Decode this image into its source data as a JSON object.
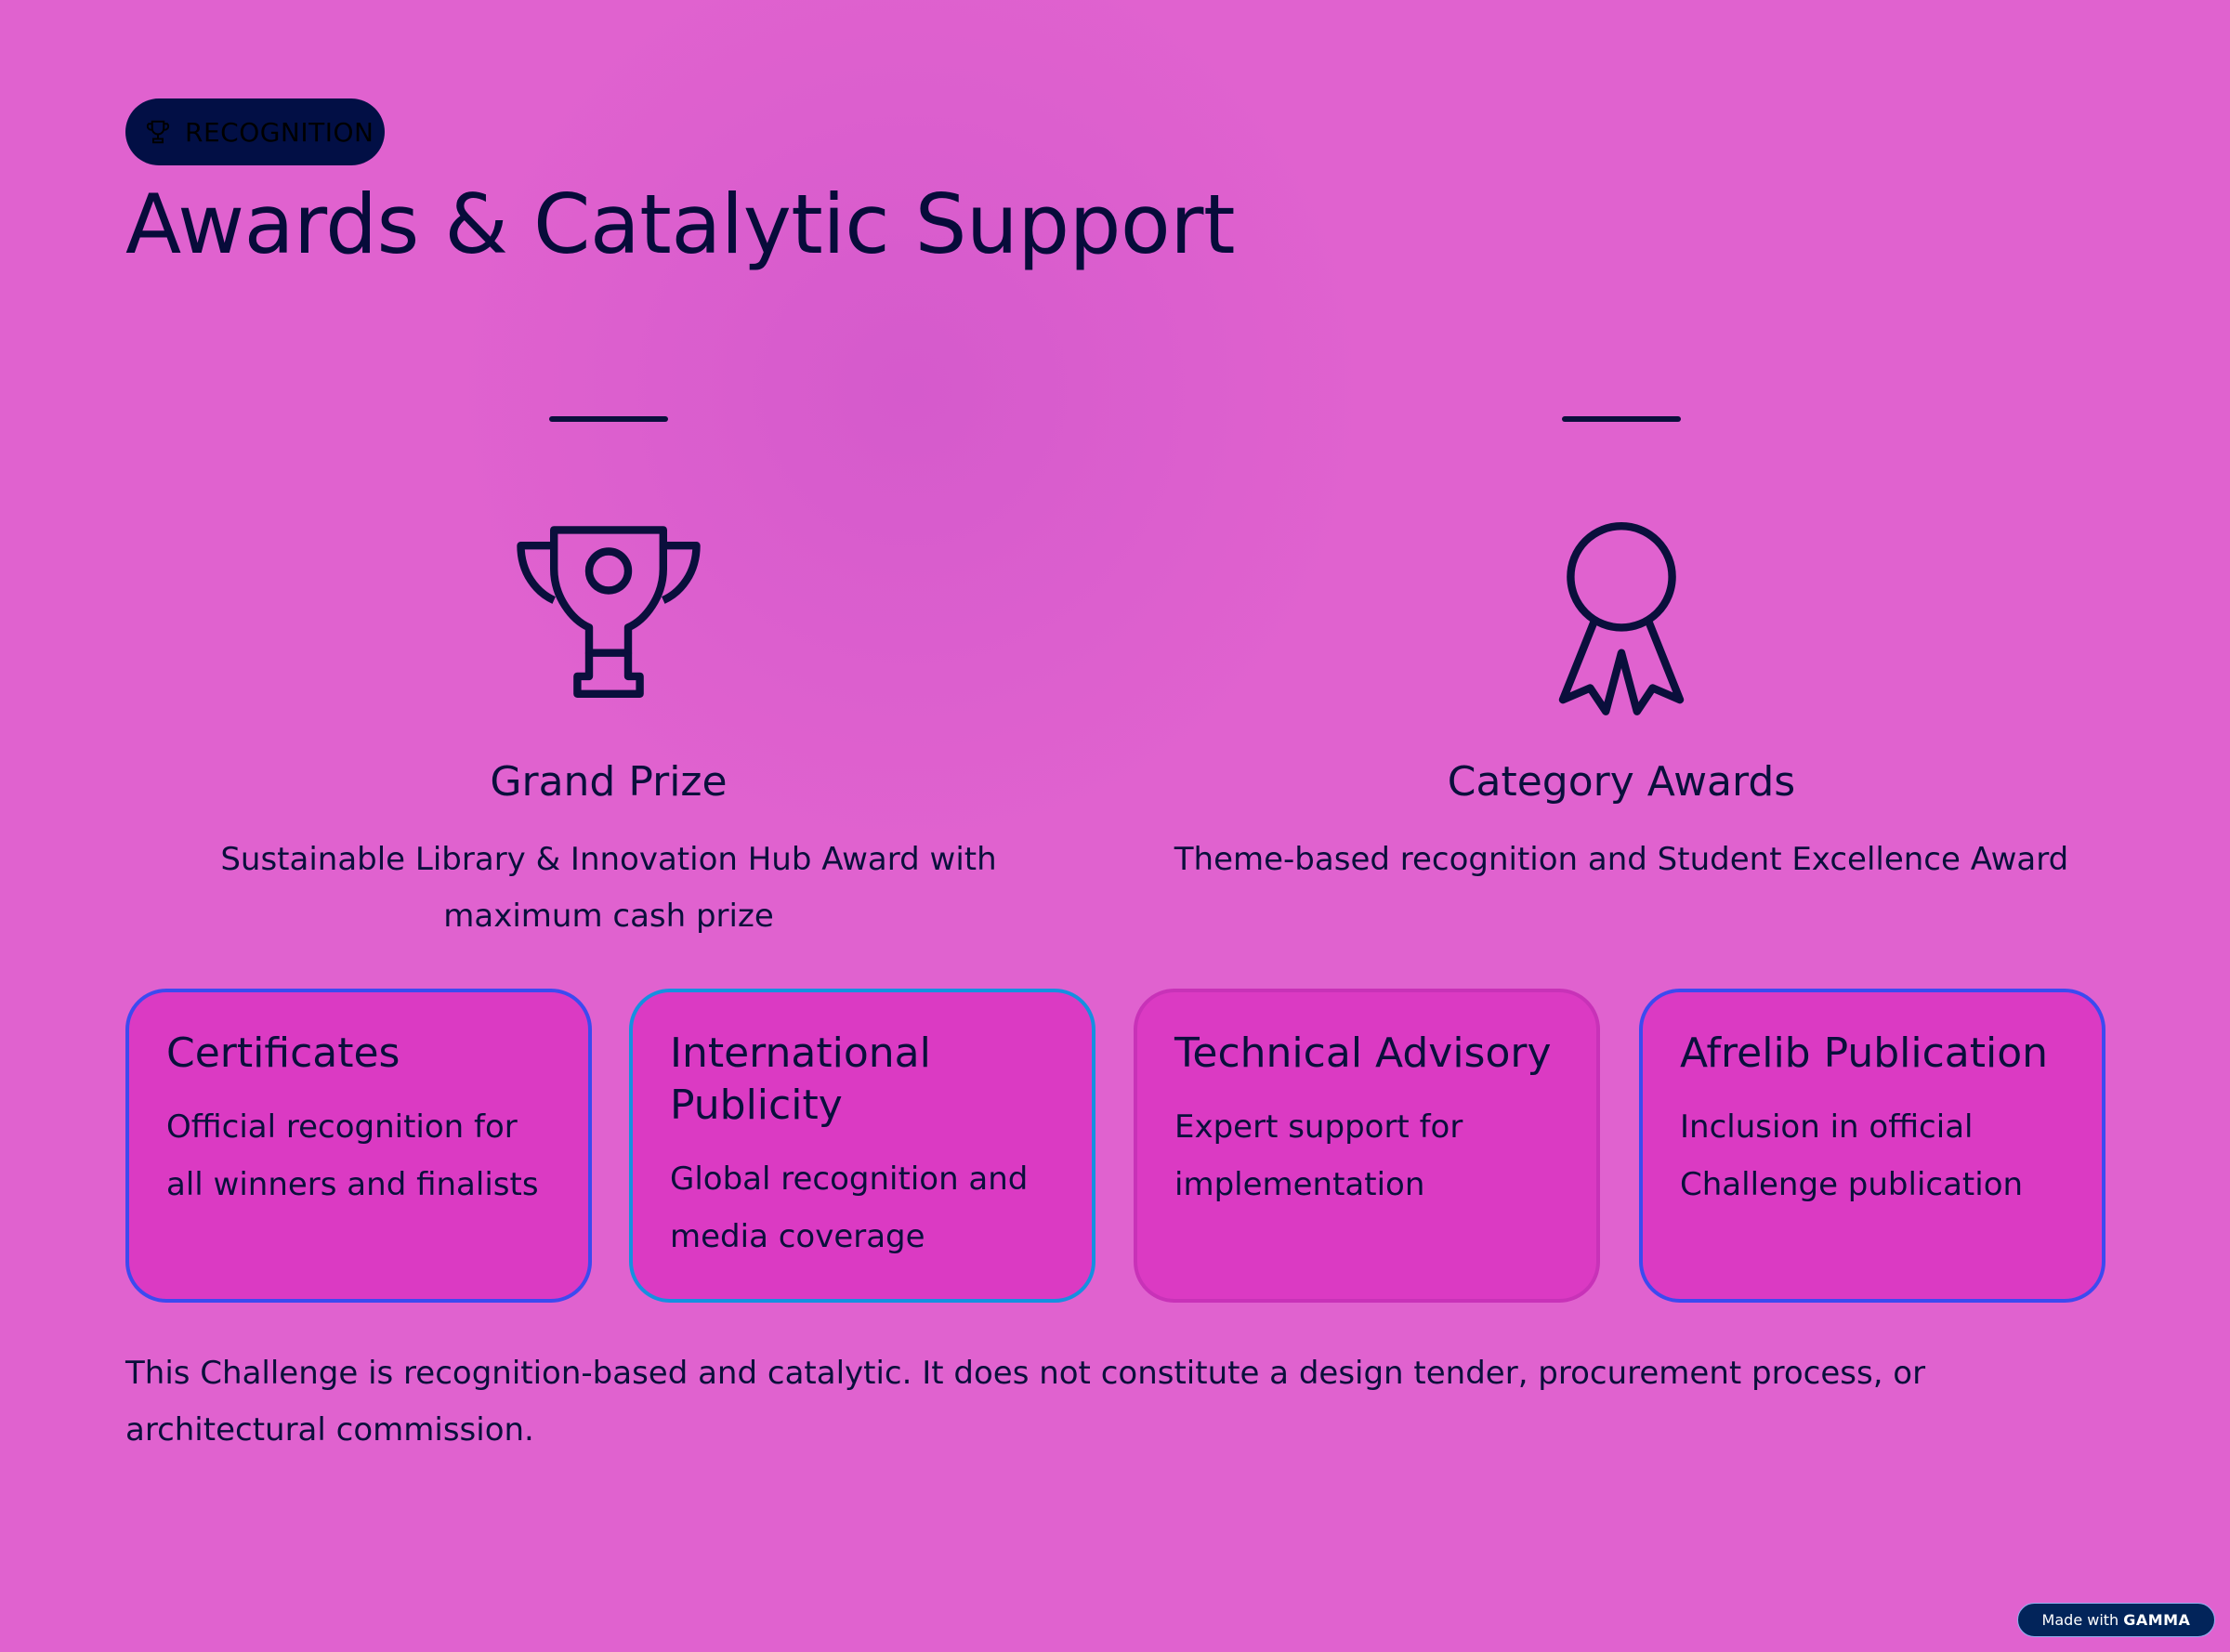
{
  "badge": {
    "label": "RECOGNITION",
    "icon": "trophy-icon"
  },
  "title": "Awards & Catalytic Support",
  "highlights": [
    {
      "icon": "trophy-icon",
      "title": "Grand Prize",
      "description": "Sustainable Library & Innovation Hub Award with maximum cash prize"
    },
    {
      "icon": "award-ribbon-icon",
      "title": "Category Awards",
      "description": "Theme-based recognition and Student Excellence Award"
    }
  ],
  "cards": [
    {
      "title": "Certificates",
      "description": "Official recognition for all winners and finalists",
      "border": "#3c4af0"
    },
    {
      "title": "International Publicity",
      "description": "Global recognition and media coverage",
      "border": "#1590e0"
    },
    {
      "title": "Technical Advisory",
      "description": "Expert support for implementation",
      "border": "#c832b8"
    },
    {
      "title": "Afrelib Publication",
      "description": "Inclusion in official Challenge publication",
      "border": "#3c4af0"
    }
  ],
  "note": "This Challenge is recognition-based and catalytic. It does not constitute a design tender, procurement process, or architectural commission.",
  "footer": {
    "made_with": "Made with",
    "brand": "GAMMA"
  },
  "colors": {
    "background": "#e062cf",
    "card": "#db3ac3",
    "text": "#0a0f3c",
    "badge": "#020f45"
  }
}
